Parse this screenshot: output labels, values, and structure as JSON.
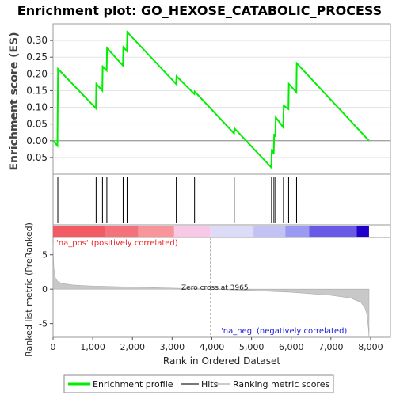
{
  "chart_data": {
    "type": "line",
    "title": "Enrichment plot: GO_HEXOSE_CATABOLIC_PROCESS",
    "es_panel": {
      "ylabel": "Enrichment score (ES)",
      "ylim": [
        -0.1,
        0.35
      ],
      "yticks": [
        -0.05,
        0.0,
        0.05,
        0.1,
        0.15,
        0.2,
        0.25,
        0.3
      ],
      "ytick_labels": [
        "-0.05",
        "0.00",
        "0.05",
        "0.10",
        "0.15",
        "0.20",
        "0.25",
        "0.30"
      ],
      "series": [
        {
          "name": "Enrichment profile",
          "color": "#00ee00",
          "x": [
            0,
            110,
            125,
            1080,
            1090,
            1240,
            1250,
            1350,
            1360,
            1760,
            1770,
            1860,
            1870,
            3100,
            3110,
            3560,
            3570,
            4560,
            4570,
            5500,
            5510,
            5560,
            5570,
            5600,
            5610,
            5800,
            5810,
            5930,
            5940,
            6130,
            6140,
            7960
          ],
          "y": [
            0.0,
            -0.015,
            0.215,
            0.097,
            0.17,
            0.15,
            0.222,
            0.21,
            0.277,
            0.225,
            0.28,
            0.268,
            0.325,
            0.17,
            0.193,
            0.14,
            0.147,
            0.022,
            0.037,
            -0.08,
            -0.025,
            -0.04,
            0.02,
            0.012,
            0.07,
            0.04,
            0.105,
            0.095,
            0.17,
            0.145,
            0.232,
            0.0
          ]
        }
      ]
    },
    "hits": [
      120,
      1085,
      1245,
      1355,
      1765,
      1865,
      3105,
      3565,
      4565,
      5505,
      5565,
      5605,
      5805,
      5935,
      6135
    ],
    "color_bar": [
      {
        "x0": 0,
        "x1": 1300,
        "color": "#f25a64"
      },
      {
        "x0": 1300,
        "x1": 2150,
        "color": "#f4727c"
      },
      {
        "x0": 2150,
        "x1": 3050,
        "color": "#f7959a"
      },
      {
        "x0": 3050,
        "x1": 3965,
        "color": "#f9c8e6"
      },
      {
        "x0": 3965,
        "x1": 5050,
        "color": "#dcdcf8"
      },
      {
        "x0": 5050,
        "x1": 5850,
        "color": "#c2c2f4"
      },
      {
        "x0": 5850,
        "x1": 6450,
        "color": "#9a9af2"
      },
      {
        "x0": 6450,
        "x1": 7650,
        "color": "#6a5ae8"
      },
      {
        "x0": 7650,
        "x1": 7960,
        "color": "#2200cc"
      }
    ],
    "ranked_panel": {
      "ylabel": "Ranked list metric (PreRanked)",
      "ylim": [
        -7,
        7.5
      ],
      "yticks": [
        -5,
        0,
        5
      ],
      "ytick_labels": [
        "-5",
        "0",
        "5"
      ],
      "metric_x": [
        0,
        20,
        60,
        120,
        250,
        500,
        1000,
        2000,
        3000,
        3965,
        5000,
        6000,
        7000,
        7500,
        7750,
        7850,
        7900,
        7930,
        7950,
        7960
      ],
      "metric_y": [
        6.5,
        3.0,
        1.6,
        1.1,
        0.8,
        0.6,
        0.45,
        0.3,
        0.15,
        0.0,
        -0.2,
        -0.45,
        -0.9,
        -1.3,
        -1.9,
        -2.6,
        -3.5,
        -4.8,
        -6.0,
        -7.0
      ],
      "pos_label": "'na_pos' (positively correlated)",
      "neg_label": "'na_neg' (negatively correlated)",
      "zero_cross_label": "Zero cross at 3965",
      "zero_cross_x": 3965
    },
    "xlabel": "Rank in Ordered Dataset",
    "xlim": [
      0,
      8500
    ],
    "xticks": [
      0,
      1000,
      2000,
      3000,
      4000,
      5000,
      6000,
      7000,
      8000
    ],
    "xtick_labels": [
      "0",
      "1,000",
      "2,000",
      "3,000",
      "4,000",
      "5,000",
      "6,000",
      "7,000",
      "8,000"
    ],
    "legend": {
      "placement": "bottom",
      "items": [
        {
          "label": "Enrichment profile",
          "color": "#00ee00"
        },
        {
          "label": "Hits",
          "color": "#777777"
        },
        {
          "label": "Ranking metric scores",
          "color": "#cccccc"
        }
      ]
    },
    "colors": {
      "profile": "#00ee00",
      "hit": "#000000",
      "metric_fill": "#c8c8c8",
      "pos_label": "#ee2222",
      "neg_label": "#2222dd"
    }
  }
}
